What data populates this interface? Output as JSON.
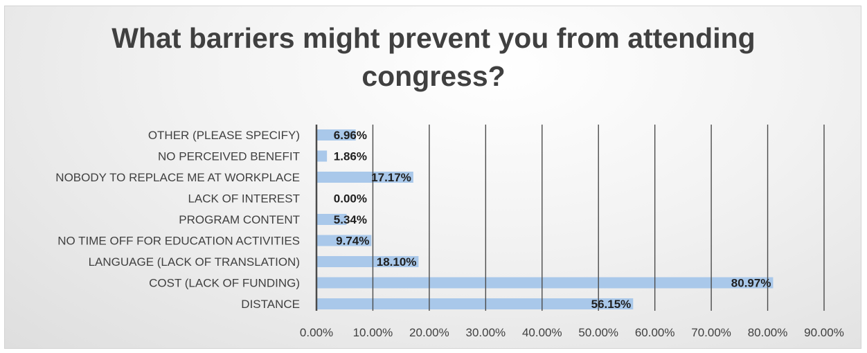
{
  "chart_data": {
    "type": "bar",
    "orientation": "horizontal",
    "title_lines": [
      "What barriers might prevent you from attending",
      "congress?"
    ],
    "categories": [
      "OTHER (PLEASE SPECIFY)",
      "NO PERCEIVED BENEFIT",
      "NOBODY TO REPLACE ME AT WORKPLACE",
      "LACK OF INTEREST",
      "PROGRAM CONTENT",
      "NO TIME OFF FOR EDUCATION ACTIVITIES",
      "LANGUAGE (LACK OF TRANSLATION)",
      "COST (LACK OF FUNDING)",
      "DISTANCE"
    ],
    "values": [
      6.96,
      1.86,
      17.17,
      0.0,
      5.34,
      9.74,
      18.1,
      80.97,
      56.15
    ],
    "value_labels": [
      "6.96%",
      "1.86%",
      "17.17%",
      "0.00%",
      "5.34%",
      "9.74%",
      "18.10%",
      "80.97%",
      "56.15%"
    ],
    "xlim": [
      0,
      90
    ],
    "xticks": [
      0,
      10,
      20,
      30,
      40,
      50,
      60,
      70,
      80,
      90
    ],
    "xtick_labels": [
      "0.00%",
      "10.00%",
      "20.00%",
      "30.00%",
      "40.00%",
      "50.00%",
      "60.00%",
      "70.00%",
      "80.00%",
      "90.00%"
    ],
    "grid": "vertical",
    "legend": "none",
    "bar_color": "#a9c8ea",
    "gridline_color": "#4a4a4a",
    "text_color": "#404040"
  }
}
